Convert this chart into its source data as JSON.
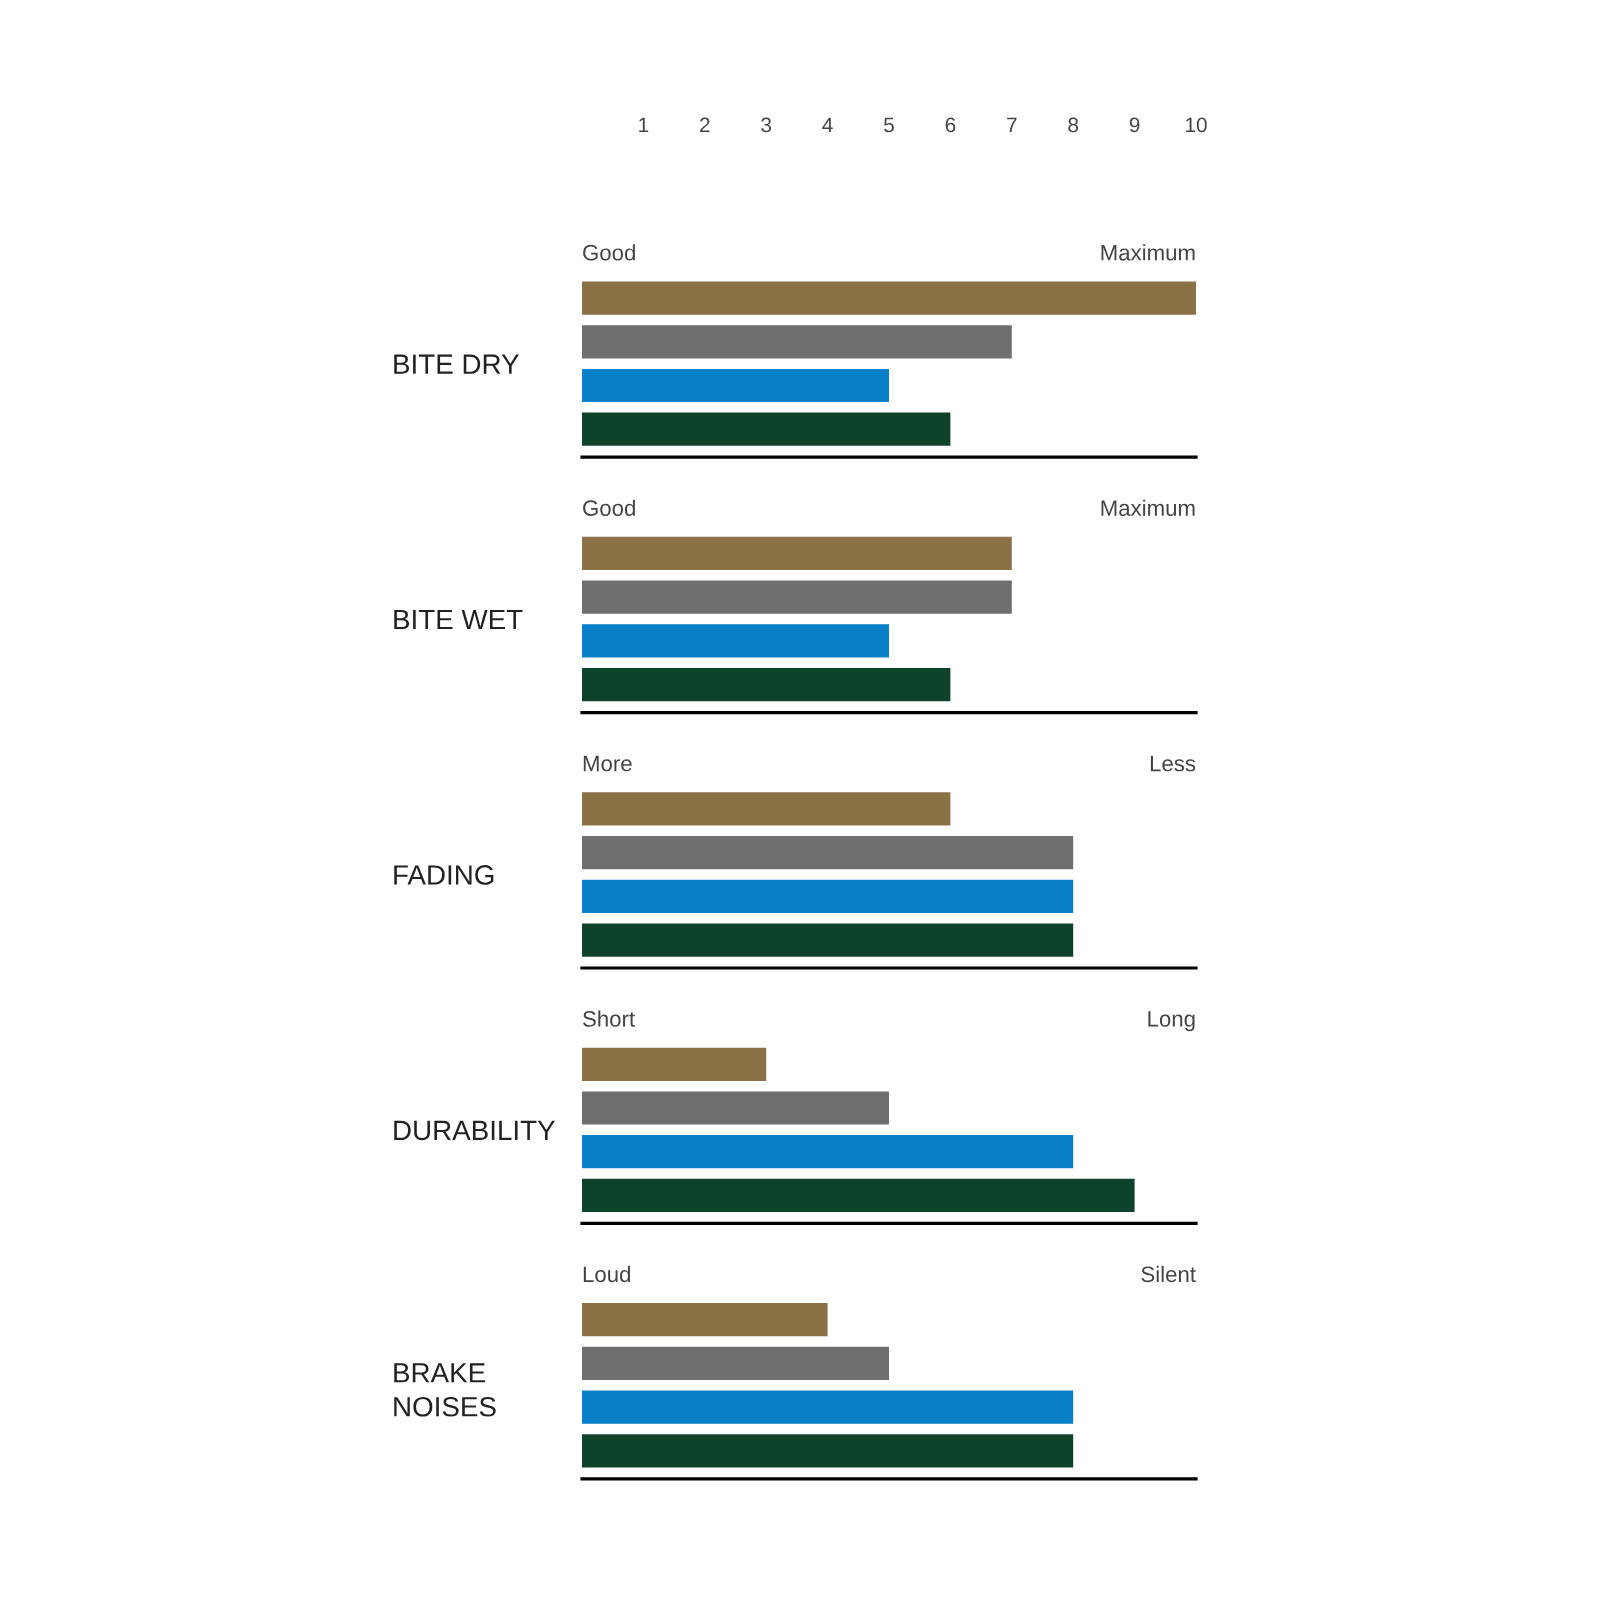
{
  "chart_data": {
    "type": "bar",
    "orientation": "horizontal",
    "categories": [
      "BITE DRY",
      "BITE WET",
      "FADING",
      "DURABILITY",
      "BRAKE\nNOISES"
    ],
    "series": [
      {
        "color": "#8b7146",
        "values": [
          10,
          7,
          6,
          3,
          4
        ]
      },
      {
        "color": "#6f6f6f",
        "values": [
          7,
          7,
          8,
          5,
          5
        ]
      },
      {
        "color": "#0a80cb",
        "values": [
          5,
          5,
          8,
          8,
          8
        ]
      },
      {
        "color": "#0e422b",
        "values": [
          6,
          6,
          8,
          9,
          8
        ]
      }
    ],
    "xlim": [
      0,
      10
    ],
    "xticks": [
      1,
      2,
      3,
      4,
      5,
      6,
      7,
      8,
      9,
      10
    ],
    "annotations": [
      "Good",
      "Maximum",
      "Good",
      "Maximum",
      "More",
      "Less",
      "Short",
      "Long",
      "Loud",
      "Silent"
    ]
  }
}
